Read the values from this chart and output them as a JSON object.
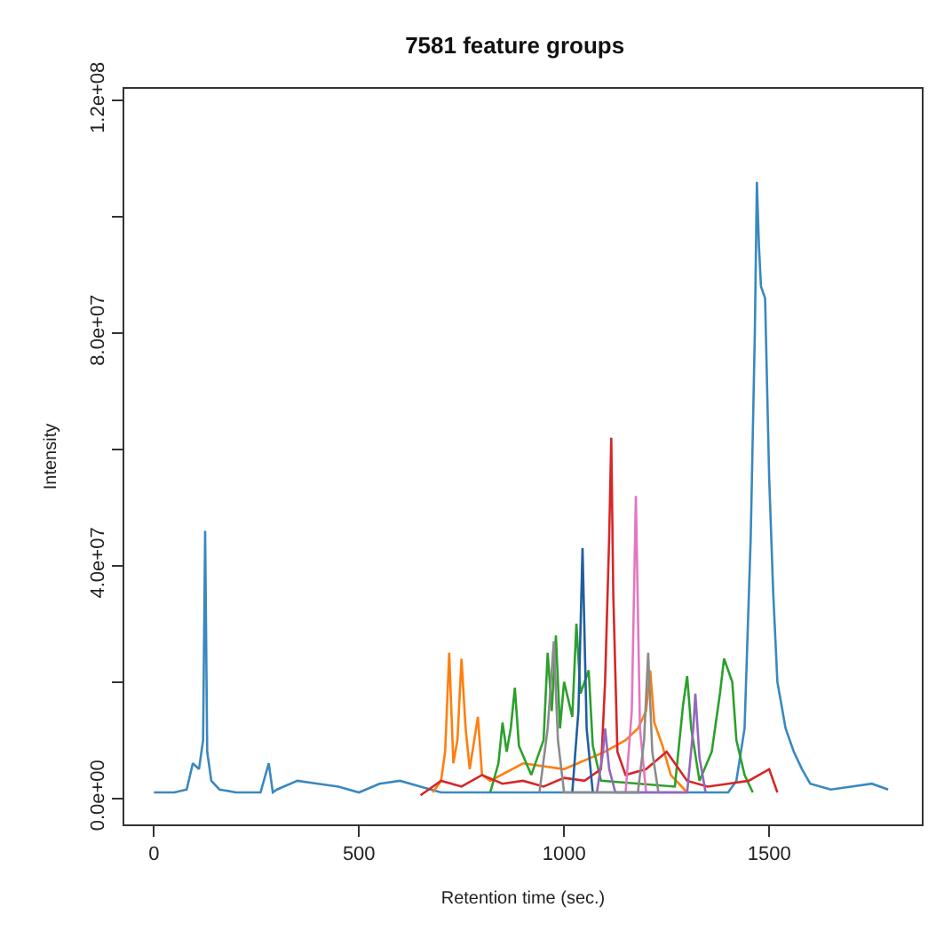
{
  "chart_data": {
    "type": "line",
    "title": "7581 feature groups",
    "xlabel": "Retention time (sec.)",
    "ylabel": "Intensity",
    "xlim": [
      -72,
      1872
    ],
    "ylim": [
      -4500000,
      122000000
    ],
    "xticks": [
      0,
      500,
      1000,
      1500
    ],
    "yticks": [
      {
        "value": 0,
        "label": "0.0e+00"
      },
      {
        "value": 20000000,
        "label": null
      },
      {
        "value": 40000000,
        "label": "4.0e+07"
      },
      {
        "value": 60000000,
        "label": null
      },
      {
        "value": 80000000,
        "label": "8.0e+07"
      },
      {
        "value": 100000000,
        "label": null
      },
      {
        "value": 120000000,
        "label": "1.2e+08"
      }
    ],
    "legend": false,
    "marker": "none",
    "line_style": "solid",
    "series": [
      {
        "color": "#3a88c0",
        "x": [
          0,
          50,
          80,
          95,
          110,
          120,
          125,
          130,
          140,
          160,
          200,
          260,
          280,
          290,
          300,
          350,
          400,
          450,
          500,
          550,
          600,
          650,
          700,
          1400,
          1420,
          1440,
          1455,
          1465,
          1470,
          1475,
          1480,
          1490,
          1500,
          1510,
          1520,
          1540,
          1560,
          1580,
          1600,
          1650,
          1700,
          1750,
          1790
        ],
        "values": [
          1000000,
          1000000,
          1500000,
          6000000,
          5000000,
          10000000,
          46000000,
          8000000,
          3000000,
          1500000,
          1000000,
          1000000,
          6000000,
          1000000,
          1500000,
          3000000,
          2500000,
          2000000,
          1000000,
          2500000,
          3000000,
          2000000,
          1000000,
          1000000,
          3000000,
          12000000,
          45000000,
          80000000,
          106000000,
          95000000,
          88000000,
          86000000,
          55000000,
          35000000,
          20000000,
          12000000,
          8000000,
          5000000,
          2500000,
          1500000,
          2000000,
          2500000,
          1500000
        ]
      },
      {
        "color": "#ff7f0e",
        "x": [
          680,
          700,
          710,
          720,
          730,
          740,
          750,
          760,
          770,
          790,
          800,
          820,
          900,
          1000,
          1100,
          1150,
          1180,
          1200,
          1210,
          1220,
          1240,
          1260,
          1300
        ],
        "values": [
          1000000,
          3000000,
          8000000,
          25000000,
          6000000,
          10000000,
          24000000,
          12000000,
          5000000,
          14000000,
          4000000,
          3000000,
          6000000,
          5000000,
          8000000,
          10000000,
          12000000,
          15000000,
          22000000,
          13000000,
          9000000,
          4000000,
          1000000
        ]
      },
      {
        "color": "#2ca02c",
        "x": [
          820,
          840,
          850,
          860,
          870,
          880,
          890,
          920,
          950,
          960,
          970,
          980,
          990,
          1000,
          1020,
          1030,
          1040,
          1060,
          1070,
          1090,
          1270,
          1290,
          1300,
          1310,
          1330,
          1360,
          1380,
          1390,
          1400,
          1410,
          1420,
          1440,
          1460
        ],
        "values": [
          1000000,
          6000000,
          13000000,
          8000000,
          12000000,
          19000000,
          9000000,
          4000000,
          10000000,
          25000000,
          15000000,
          28000000,
          12000000,
          20000000,
          14000000,
          30000000,
          18000000,
          22000000,
          9000000,
          3000000,
          2000000,
          16000000,
          21000000,
          12000000,
          3000000,
          8000000,
          18000000,
          24000000,
          22000000,
          20000000,
          10000000,
          4000000,
          1000000
        ]
      },
      {
        "color": "#d62728",
        "x": [
          650,
          700,
          750,
          800,
          850,
          900,
          950,
          1000,
          1050,
          1090,
          1100,
          1110,
          1115,
          1120,
          1130,
          1150,
          1200,
          1250,
          1300,
          1350,
          1400,
          1450,
          1500,
          1520
        ],
        "values": [
          500000,
          3000000,
          2000000,
          4000000,
          2500000,
          3000000,
          2000000,
          3500000,
          3000000,
          5000000,
          20000000,
          45000000,
          62000000,
          35000000,
          8000000,
          4000000,
          5000000,
          8000000,
          3000000,
          2000000,
          2500000,
          3000000,
          5000000,
          1000000
        ]
      },
      {
        "color": "#e377c2",
        "x": [
          1150,
          1165,
          1175,
          1185,
          1200
        ],
        "values": [
          1000000,
          15000000,
          52000000,
          12000000,
          1000000
        ]
      },
      {
        "color": "#9467bd",
        "x": [
          1080,
          1095,
          1100,
          1110,
          1125,
          1300,
          1315,
          1320,
          1330,
          1345
        ],
        "values": [
          1000000,
          8000000,
          12000000,
          5000000,
          1000000,
          1000000,
          12000000,
          18000000,
          7000000,
          1000000
        ]
      },
      {
        "color": "#1f5fa0",
        "x": [
          1020,
          1035,
          1045,
          1055,
          1070
        ],
        "values": [
          1000000,
          15000000,
          43000000,
          12000000,
          1000000
        ]
      },
      {
        "color": "#8c8c8c",
        "x": [
          940,
          960,
          975,
          985,
          1000,
          1180,
          1195,
          1205,
          1215,
          1230
        ],
        "values": [
          1000000,
          12000000,
          27000000,
          10000000,
          1000000,
          1000000,
          10000000,
          25000000,
          8000000,
          1000000
        ]
      }
    ]
  }
}
